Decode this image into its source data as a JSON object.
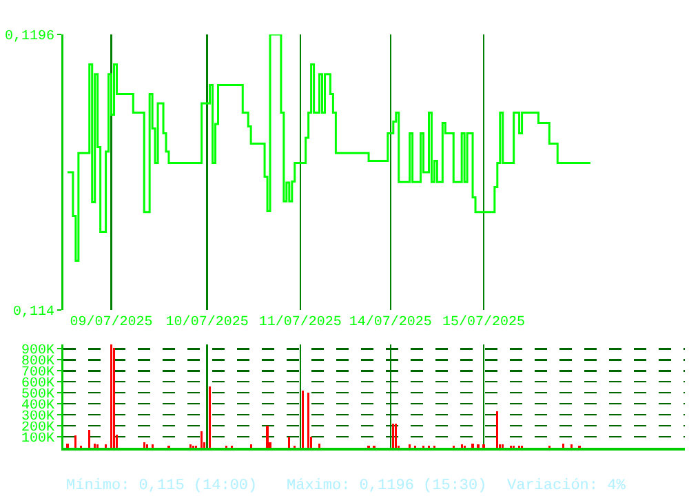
{
  "chart_data": [
    {
      "type": "step",
      "color": "#00ff00",
      "grid": true,
      "ylim": [
        0.114,
        0.1196
      ],
      "yticks": [
        {
          "value": 0.114,
          "label": "0,114"
        },
        {
          "value": 0.1196,
          "label": "0,1196"
        }
      ],
      "categories": [
        null,
        null,
        null,
        null,
        null,
        null,
        null,
        null,
        null,
        null,
        null,
        null,
        null,
        null,
        null,
        null,
        null,
        "09/07/2025",
        null,
        null,
        null,
        null,
        null,
        null,
        null,
        null,
        null,
        null,
        null,
        null,
        null,
        null,
        null,
        null,
        null,
        null,
        null,
        null,
        null,
        null,
        null,
        null,
        null,
        null,
        null,
        null,
        null,
        null,
        null,
        null,
        null,
        null,
        "10/07/2025",
        null,
        null,
        null,
        null,
        null,
        null,
        null,
        null,
        null,
        null,
        null,
        null,
        null,
        null,
        null,
        null,
        null,
        null,
        null,
        null,
        null,
        null,
        null,
        null,
        null,
        null,
        null,
        null,
        null,
        null,
        null,
        null,
        null,
        "11/07/2025",
        null,
        null,
        null,
        null,
        null,
        null,
        null,
        null,
        null,
        null,
        null,
        null,
        null,
        null,
        null,
        null,
        null,
        null,
        null,
        null,
        null,
        null,
        null,
        null,
        null,
        null,
        null,
        null,
        null,
        null,
        null,
        null,
        "14/07/2025",
        null,
        null,
        null,
        null,
        null,
        null,
        null,
        null,
        null,
        null,
        null,
        null,
        null,
        null,
        null,
        null,
        null,
        null,
        null,
        null,
        null,
        null,
        null,
        null,
        null,
        null,
        null,
        null,
        null,
        null,
        null,
        null,
        null,
        "15/07/2025",
        null,
        null,
        null,
        null,
        null,
        null,
        null,
        null,
        null,
        null,
        null,
        null,
        null,
        null,
        null,
        null,
        null,
        null,
        null,
        null,
        null,
        null,
        null,
        null,
        null,
        null,
        null,
        null,
        null,
        null,
        null,
        null,
        null,
        null,
        null,
        null,
        null,
        null,
        null,
        null,
        null,
        null,
        null,
        null,
        null,
        null,
        null,
        null,
        null,
        null,
        null,
        null,
        null,
        null,
        null,
        null,
        null,
        null,
        null,
        null,
        null,
        null,
        null,
        null,
        null,
        null,
        null,
        null,
        null,
        null,
        null,
        null,
        null
      ],
      "values": [
        null,
        0.1168,
        0.1168,
        0.11591,
        0.115,
        0.11719,
        0.11719,
        0.11719,
        0.11719,
        0.11899,
        0.11619,
        0.11879,
        0.11731,
        0.11559,
        0.11559,
        0.11722,
        0.11879,
        0.11797,
        0.11899,
        0.11839,
        0.11839,
        0.11839,
        0.11839,
        0.11839,
        0.11839,
        0.11801,
        0.11801,
        0.11801,
        0.11801,
        0.11599,
        0.11599,
        0.11839,
        0.11769,
        0.11699,
        0.1182,
        0.1182,
        0.11759,
        0.11722,
        0.11699,
        0.11699,
        0.11699,
        0.11699,
        0.11699,
        0.11699,
        0.11699,
        0.11699,
        0.11699,
        0.11699,
        0.11699,
        0.11699,
        0.1182,
        0.1182,
        0.1182,
        0.11857,
        0.11699,
        0.11778,
        0.11857,
        0.11857,
        0.11857,
        0.11857,
        0.11857,
        0.11857,
        0.11857,
        0.11857,
        0.11857,
        0.11801,
        0.11801,
        0.11773,
        0.11738,
        0.11738,
        0.11738,
        0.11738,
        0.11738,
        0.11671,
        0.11601,
        0.1196,
        0.1196,
        0.1196,
        0.1196,
        0.11801,
        0.11621,
        0.11659,
        0.11621,
        0.11661,
        0.11699,
        0.11699,
        0.11699,
        0.11699,
        0.1175,
        0.11801,
        0.11899,
        0.11801,
        0.11801,
        0.11879,
        0.11801,
        0.11879,
        0.11879,
        0.11839,
        0.11801,
        0.11719,
        0.11719,
        0.11719,
        0.11719,
        0.11719,
        0.11719,
        0.11719,
        0.11719,
        0.11719,
        0.11719,
        0.11719,
        0.11719,
        0.11703,
        0.11703,
        0.11703,
        0.11703,
        0.11703,
        0.11703,
        0.11703,
        0.11759,
        0.11759,
        0.11783,
        0.11801,
        0.1166,
        0.1166,
        0.1166,
        0.1166,
        0.11759,
        0.1166,
        0.1166,
        0.1166,
        0.11759,
        0.1168,
        0.1168,
        0.11801,
        0.1166,
        0.11703,
        0.1166,
        0.1166,
        0.1178,
        0.11759,
        0.11759,
        0.11759,
        0.1166,
        0.1166,
        0.1166,
        0.11759,
        0.1166,
        0.11759,
        0.11759,
        0.11629,
        0.11599,
        0.11599,
        0.11599,
        0.11599,
        0.11599,
        0.11599,
        0.11599,
        0.1165,
        0.11699,
        0.11801,
        0.11699,
        0.11699,
        0.11699,
        0.11699,
        0.11801,
        0.11801,
        0.11759,
        0.11801,
        0.11801,
        0.11801,
        0.11801,
        0.11801,
        0.11801,
        0.1178,
        0.1178,
        0.1178,
        0.1178,
        0.11738,
        0.11738,
        0.11738,
        0.11699,
        0.11699,
        0.11699,
        0.11699,
        0.11699,
        0.11699,
        0.11699,
        0.11699,
        0.11699,
        0.11699,
        0.11699,
        0.11699,
        0.11699,
        null,
        null,
        null,
        null,
        null,
        null,
        null,
        null,
        null,
        null,
        null,
        null,
        null,
        null,
        null,
        null,
        null,
        null,
        null,
        null,
        null,
        null,
        null,
        null,
        null,
        null,
        null,
        null,
        null,
        null,
        null,
        null,
        null,
        null
      ]
    },
    {
      "type": "bar",
      "color": "#ff0000",
      "grid": true,
      "tick_labels": "y",
      "ylim": [
        0,
        940000
      ],
      "yticks": [
        {
          "value": 100000,
          "label": "100K"
        },
        {
          "value": 200000,
          "label": "200K"
        },
        {
          "value": 300000,
          "label": "300K"
        },
        {
          "value": 400000,
          "label": "400K"
        },
        {
          "value": 500000,
          "label": "500K"
        },
        {
          "value": 600000,
          "label": "600K"
        },
        {
          "value": 700000,
          "label": "700K"
        },
        {
          "value": 800000,
          "label": "800K"
        },
        {
          "value": 900000,
          "label": "900K"
        }
      ],
      "categories": [
        null,
        null,
        null,
        null,
        null,
        null,
        null,
        null,
        null,
        null,
        null,
        null,
        null,
        null,
        null,
        null,
        null,
        null,
        null,
        null,
        null,
        null,
        null,
        null,
        null,
        null,
        null,
        null,
        null,
        null,
        null,
        null,
        null,
        null,
        null,
        null,
        null,
        null,
        null,
        null,
        null,
        null,
        null,
        null,
        null,
        null,
        null,
        null,
        null,
        null,
        null,
        null,
        null,
        null,
        null,
        null,
        null,
        null,
        null,
        null,
        null,
        null,
        null,
        null,
        null,
        null,
        null,
        null,
        null,
        null,
        null,
        null,
        null,
        null,
        null,
        null,
        null,
        null,
        null,
        null,
        null,
        null,
        null,
        null,
        null,
        null,
        null,
        null,
        null,
        null,
        null,
        null,
        null,
        null,
        null,
        null,
        null,
        null,
        null,
        null,
        null,
        null,
        null,
        null,
        null,
        null,
        null,
        null,
        null,
        null,
        null,
        null,
        null,
        null,
        null,
        null,
        null,
        null,
        null,
        null,
        null,
        null,
        null,
        null,
        null,
        null,
        null,
        null,
        null,
        null,
        null,
        null,
        null,
        null,
        null,
        null,
        null,
        null,
        null,
        null,
        null,
        null,
        null,
        null,
        null,
        null,
        null,
        null,
        null,
        null,
        null,
        null,
        null,
        null,
        null,
        null,
        null,
        null,
        null,
        null,
        null,
        null,
        null,
        null,
        null,
        null,
        null,
        null,
        null,
        null,
        null,
        null,
        null,
        null,
        null,
        null,
        null,
        null,
        null,
        null,
        null,
        null,
        null,
        null,
        null,
        null,
        null,
        null,
        null,
        null,
        null,
        null,
        null,
        null,
        null,
        null,
        null,
        null,
        null,
        null,
        null,
        null,
        null,
        null,
        null,
        null,
        null,
        null,
        null,
        null,
        null,
        null,
        null,
        null,
        null,
        null,
        null,
        null,
        null,
        null,
        null,
        null,
        null,
        null,
        null,
        null,
        null
      ],
      "values": [
        null,
        40000,
        null,
        null,
        110000,
        null,
        20000,
        null,
        null,
        160000,
        null,
        40000,
        30000,
        null,
        null,
        30000,
        null,
        940000,
        910000,
        120000,
        null,
        null,
        null,
        null,
        null,
        null,
        null,
        null,
        null,
        50000,
        30000,
        null,
        30000,
        null,
        null,
        null,
        null,
        null,
        20000,
        null,
        null,
        null,
        null,
        null,
        null,
        null,
        30000,
        20000,
        20000,
        null,
        150000,
        50000,
        null,
        560000,
        null,
        null,
        null,
        null,
        null,
        20000,
        null,
        20000,
        null,
        null,
        null,
        null,
        null,
        null,
        30000,
        null,
        null,
        null,
        null,
        null,
        200000,
        50000,
        null,
        null,
        null,
        null,
        null,
        null,
        100000,
        null,
        20000,
        null,
        null,
        520000,
        null,
        500000,
        100000,
        null,
        null,
        40000,
        null,
        null,
        null,
        null,
        null,
        null,
        null,
        null,
        null,
        null,
        null,
        null,
        null,
        null,
        null,
        null,
        null,
        20000,
        null,
        20000,
        null,
        null,
        null,
        null,
        null,
        null,
        220000,
        220000,
        20000,
        null,
        null,
        null,
        30000,
        null,
        20000,
        null,
        null,
        20000,
        null,
        20000,
        null,
        20000,
        null,
        null,
        null,
        null,
        null,
        null,
        20000,
        null,
        null,
        30000,
        20000,
        null,
        null,
        40000,
        null,
        30000,
        null,
        30000,
        null,
        null,
        null,
        null,
        330000,
        30000,
        30000,
        null,
        null,
        20000,
        20000,
        null,
        20000,
        20000,
        null,
        null,
        null,
        null,
        null,
        null,
        null,
        null,
        null,
        20000,
        null,
        null,
        null,
        null,
        40000,
        null,
        null,
        30000,
        null,
        null,
        20000,
        null,
        null,
        null,
        null,
        null,
        null,
        null,
        null,
        null,
        null,
        null,
        null,
        null,
        null,
        null,
        null,
        null,
        null,
        null,
        null,
        null,
        null,
        null,
        null,
        null,
        null,
        null,
        null,
        null,
        null,
        null,
        null,
        null,
        null,
        null,
        null,
        null,
        null
      ],
      "annotations": [
        "Mínimo: 0,115 (14:00)",
        "Máximo: 0,1196 (15:30)",
        "Variación: 4%"
      ]
    }
  ]
}
